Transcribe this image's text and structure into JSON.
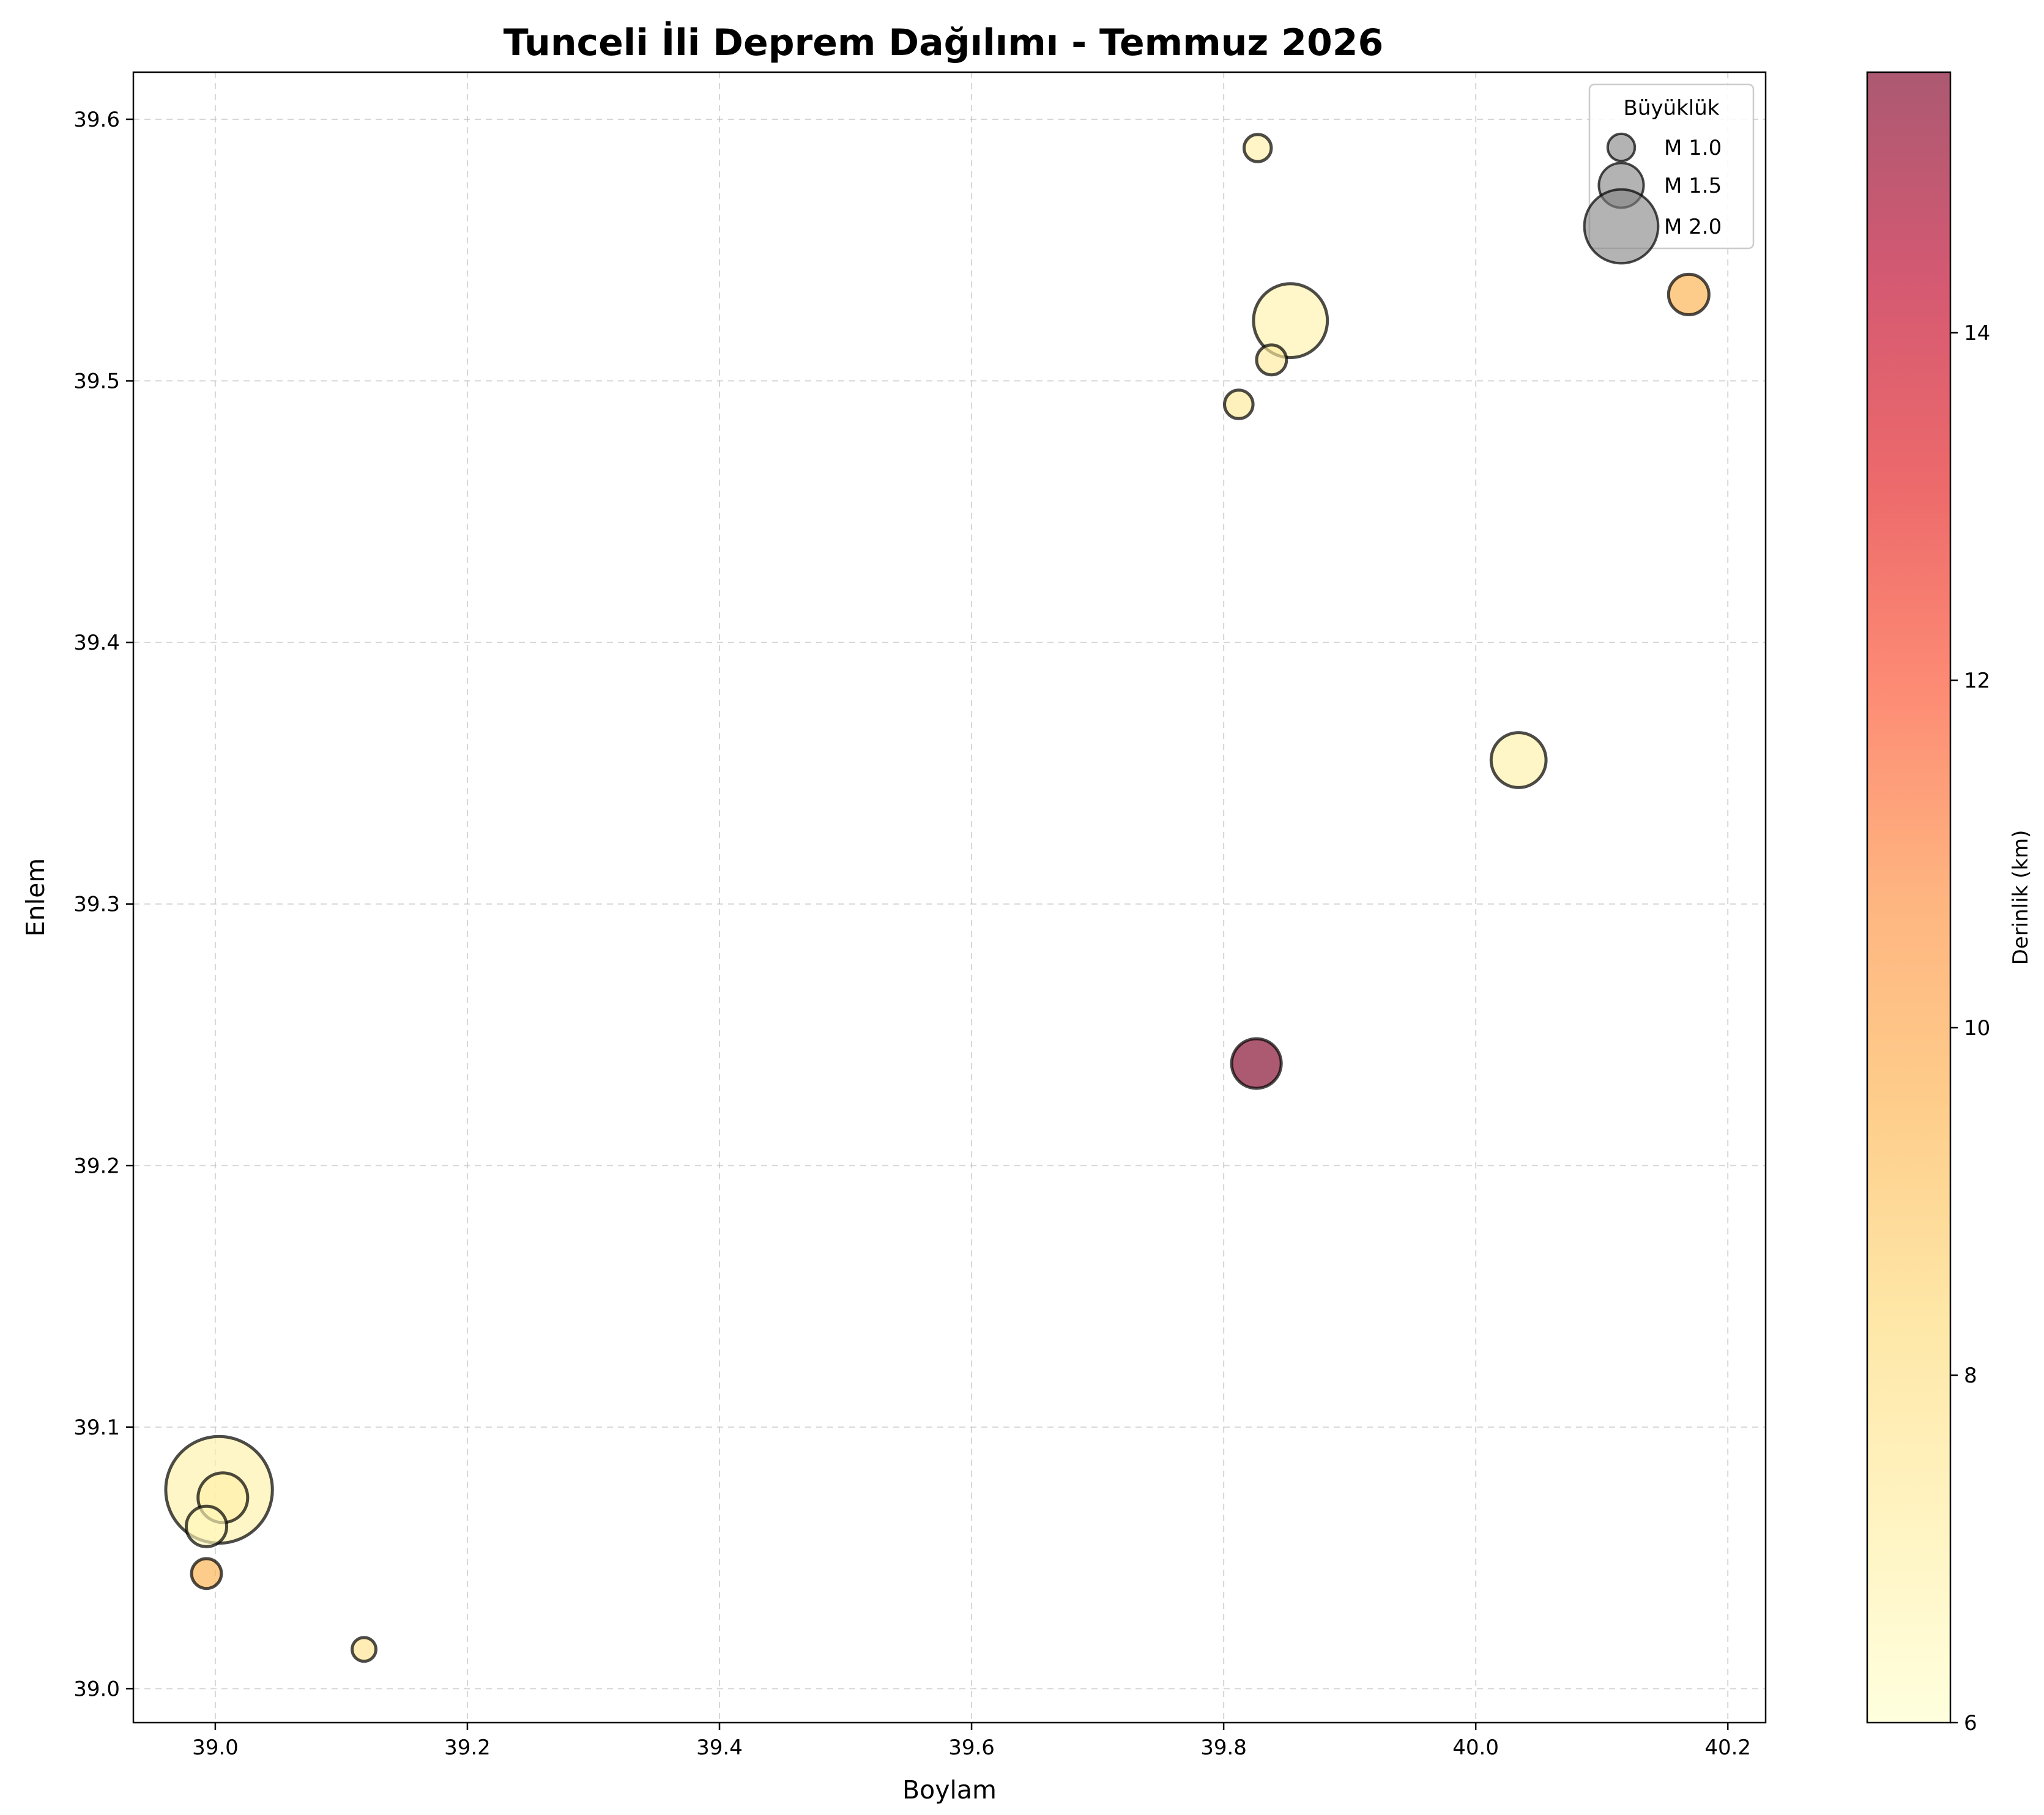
{
  "chart_data": {
    "type": "scatter",
    "title": "Tunceli İli Deprem Dağılımı - Temmuz 2026",
    "xlabel": "Boylam",
    "ylabel": "Enlem",
    "xlim": [
      38.935,
      40.23
    ],
    "ylim": [
      38.987,
      39.618
    ],
    "xticks": [
      39.0,
      39.2,
      39.4,
      39.6,
      39.8,
      40.0,
      40.2
    ],
    "yticks": [
      39.0,
      39.1,
      39.2,
      39.3,
      39.4,
      39.5,
      39.6
    ],
    "grid": true,
    "points": [
      {
        "lon": 39.827,
        "lat": 39.589,
        "mag": 1.0,
        "depth": 7.0
      },
      {
        "lon": 39.853,
        "lat": 39.523,
        "mag": 2.0,
        "depth": 6.8
      },
      {
        "lon": 40.169,
        "lat": 39.533,
        "mag": 1.4,
        "depth": 9.6
      },
      {
        "lon": 39.838,
        "lat": 39.508,
        "mag": 1.1,
        "depth": 7.3
      },
      {
        "lon": 39.812,
        "lat": 39.491,
        "mag": 1.05,
        "depth": 7.4
      },
      {
        "lon": 40.034,
        "lat": 39.355,
        "mag": 1.7,
        "depth": 6.9
      },
      {
        "lon": 39.826,
        "lat": 39.239,
        "mag": 1.6,
        "depth": 15.5
      },
      {
        "lon": 39.003,
        "lat": 39.076,
        "mag": 2.4,
        "depth": 6.9
      },
      {
        "lon": 39.006,
        "lat": 39.073,
        "mag": 1.6,
        "depth": 7.0
      },
      {
        "lon": 38.993,
        "lat": 39.062,
        "mag": 1.4,
        "depth": 6.5
      },
      {
        "lon": 38.993,
        "lat": 39.044,
        "mag": 1.1,
        "depth": 9.6
      },
      {
        "lon": 39.118,
        "lat": 39.015,
        "mag": 0.85,
        "depth": 7.7
      }
    ],
    "legend": {
      "title": "Büyüklük",
      "position": "top-right",
      "entries": [
        {
          "label": "M 1.0",
          "mag": 1.0
        },
        {
          "label": "M 1.5",
          "mag": 1.5
        },
        {
          "label": "M 2.0",
          "mag": 2.0
        }
      ]
    },
    "colorbar": {
      "label": "Derinlik (km)",
      "min": 6,
      "max": 15.5,
      "ticks": [
        6,
        8,
        10,
        12,
        14
      ],
      "colors": [
        "#ffffcc",
        "#ffeda0",
        "#fed976",
        "#feb24c",
        "#fd8d3c",
        "#fc4e2a",
        "#e31a1c",
        "#bd0026",
        "#800026"
      ]
    }
  }
}
